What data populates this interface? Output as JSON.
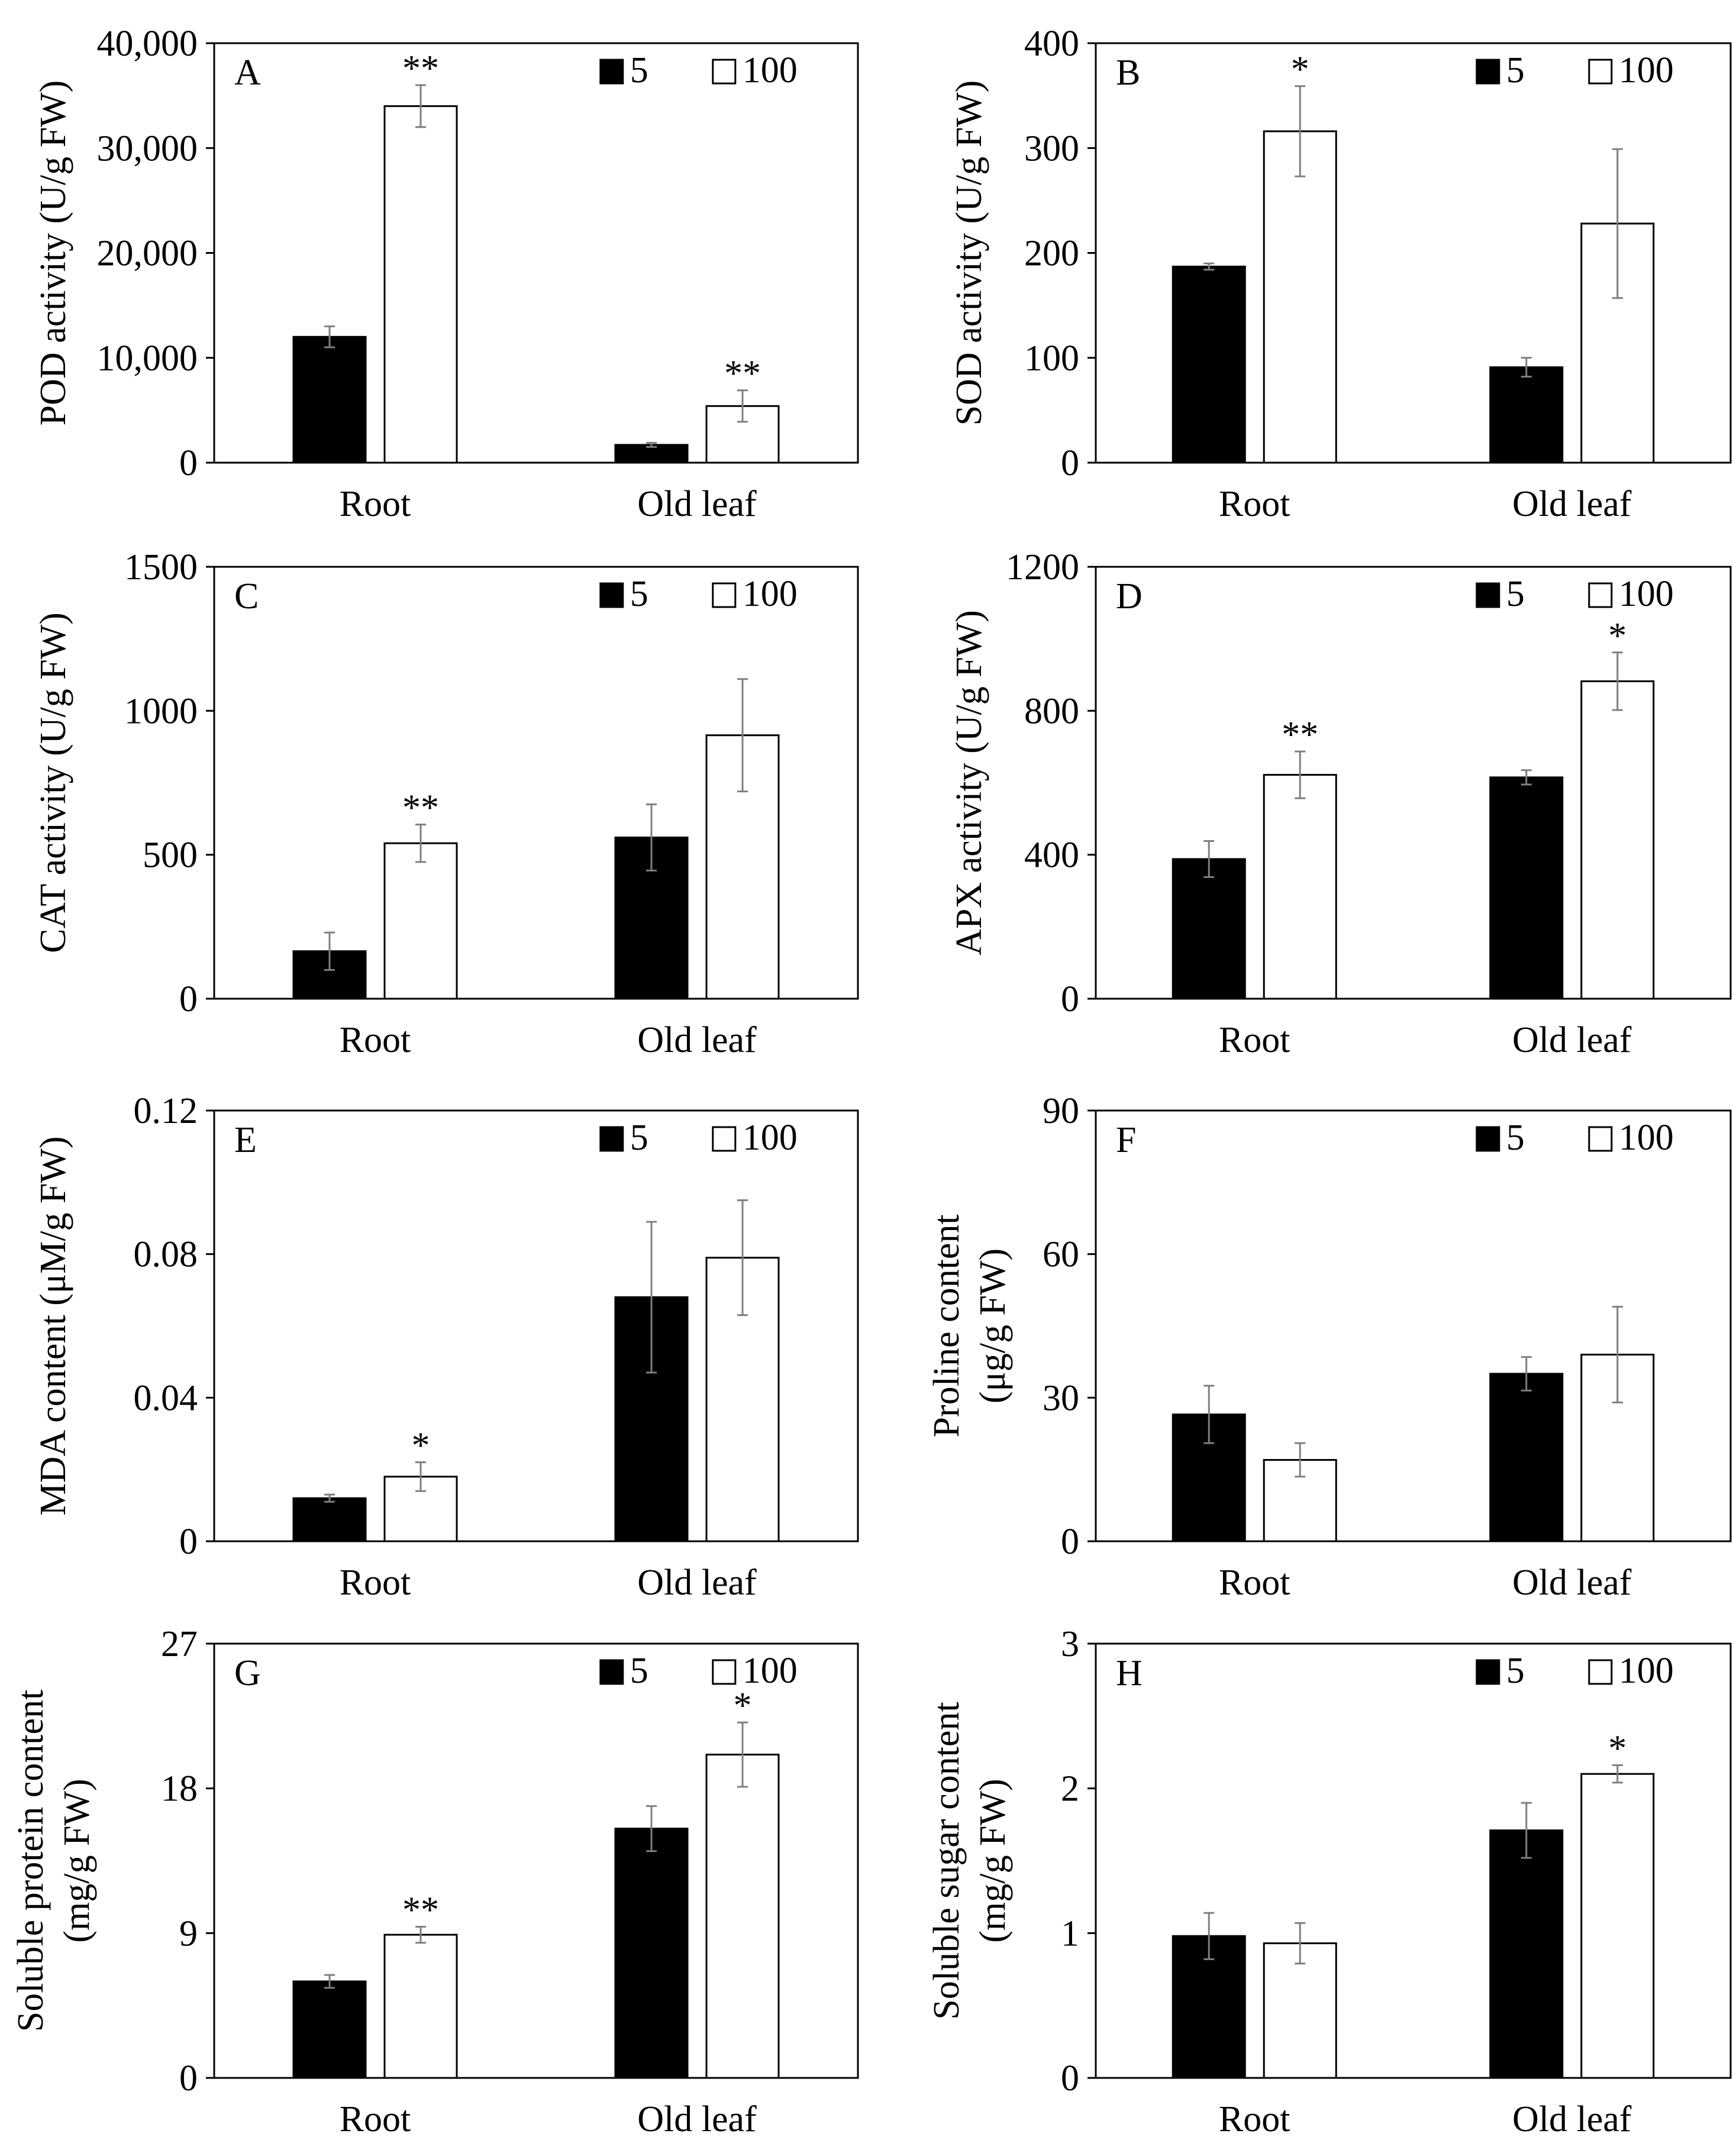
{
  "legend": {
    "labels": [
      "5",
      "100"
    ],
    "colors": [
      "#000000",
      "#ffffff"
    ]
  },
  "categories": [
    "Root",
    "Old leaf"
  ],
  "colors": {
    "bar_5": "#000000",
    "bar_100": "#ffffff",
    "error": "#7f7f7f",
    "axis": "#000000"
  },
  "chart_data": [
    {
      "type": "bar",
      "panel": "A",
      "ylabel": "POD activity (U/g FW)",
      "categories": [
        "Root",
        "Old leaf"
      ],
      "ylim": [
        0,
        40000
      ],
      "yticks": [
        0,
        10000,
        20000,
        30000,
        40000
      ],
      "ytick_labels": [
        "0",
        "10,000",
        "20,000",
        "30,000",
        "40,000"
      ],
      "series": [
        {
          "name": "5",
          "values": [
            12000,
            1700
          ],
          "errors": [
            1000,
            200
          ],
          "sig": [
            "",
            ""
          ]
        },
        {
          "name": "100",
          "values": [
            34000,
            5400
          ],
          "errors": [
            2000,
            1500
          ],
          "sig": [
            "**",
            "**"
          ]
        }
      ]
    },
    {
      "type": "bar",
      "panel": "B",
      "ylabel": "SOD activity (U/g FW)",
      "categories": [
        "Root",
        "Old leaf"
      ],
      "ylim": [
        0,
        400
      ],
      "yticks": [
        0,
        100,
        200,
        300,
        400
      ],
      "ytick_labels": [
        "0",
        "100",
        "200",
        "300",
        "400"
      ],
      "series": [
        {
          "name": "5",
          "values": [
            187,
            91
          ],
          "errors": [
            3,
            9
          ],
          "sig": [
            "",
            ""
          ]
        },
        {
          "name": "100",
          "values": [
            316,
            228
          ],
          "errors": [
            43,
            71
          ],
          "sig": [
            "*",
            ""
          ]
        }
      ]
    },
    {
      "type": "bar",
      "panel": "C",
      "ylabel": "CAT activity (U/g FW)",
      "categories": [
        "Root",
        "Old leaf"
      ],
      "ylim": [
        0,
        1500
      ],
      "yticks": [
        0,
        500,
        1000,
        1500
      ],
      "ytick_labels": [
        "0",
        "500",
        "1000",
        "1500"
      ],
      "series": [
        {
          "name": "5",
          "values": [
            165,
            560
          ],
          "errors": [
            65,
            115
          ],
          "sig": [
            "",
            ""
          ]
        },
        {
          "name": "100",
          "values": [
            540,
            915
          ],
          "errors": [
            65,
            195
          ],
          "sig": [
            "**",
            ""
          ]
        }
      ]
    },
    {
      "type": "bar",
      "panel": "D",
      "ylabel": "APX activity (U/g FW)",
      "categories": [
        "Root",
        "Old leaf"
      ],
      "ylim": [
        0,
        1200
      ],
      "yticks": [
        0,
        400,
        800,
        1200
      ],
      "ytick_labels": [
        "0",
        "400",
        "800",
        "1200"
      ],
      "series": [
        {
          "name": "5",
          "values": [
            388,
            615
          ],
          "errors": [
            50,
            20
          ],
          "sig": [
            "",
            ""
          ]
        },
        {
          "name": "100",
          "values": [
            622,
            882
          ],
          "errors": [
            65,
            80
          ],
          "sig": [
            "**",
            "*"
          ]
        }
      ]
    },
    {
      "type": "bar",
      "panel": "E",
      "ylabel": "MDA content (μM/g FW)",
      "categories": [
        "Root",
        "Old leaf"
      ],
      "ylim": [
        0,
        0.12
      ],
      "yticks": [
        0,
        0.04,
        0.08,
        0.12
      ],
      "ytick_labels": [
        "0",
        "0.04",
        "0.08",
        "0.12"
      ],
      "series": [
        {
          "name": "5",
          "values": [
            0.012,
            0.068
          ],
          "errors": [
            0.001,
            0.021
          ],
          "sig": [
            "",
            ""
          ]
        },
        {
          "name": "100",
          "values": [
            0.018,
            0.079
          ],
          "errors": [
            0.004,
            0.016
          ],
          "sig": [
            "*",
            ""
          ]
        }
      ]
    },
    {
      "type": "bar",
      "panel": "F",
      "ylabel": "Proline content",
      "ylabel2": "(μg/g FW)",
      "categories": [
        "Root",
        "Old leaf"
      ],
      "ylim": [
        0,
        90
      ],
      "yticks": [
        0,
        30,
        60,
        90
      ],
      "ytick_labels": [
        "0",
        "30",
        "60",
        "90"
      ],
      "series": [
        {
          "name": "5",
          "values": [
            26.5,
            35
          ],
          "errors": [
            6,
            3.5
          ],
          "sig": [
            "",
            ""
          ]
        },
        {
          "name": "100",
          "values": [
            17,
            39
          ],
          "errors": [
            3.5,
            10
          ],
          "sig": [
            "",
            ""
          ]
        }
      ]
    },
    {
      "type": "bar",
      "panel": "G",
      "ylabel": "Soluble protein content",
      "ylabel2": "(mg/g FW)",
      "categories": [
        "Root",
        "Old leaf"
      ],
      "ylim": [
        0,
        27
      ],
      "yticks": [
        0,
        9,
        18,
        27
      ],
      "ytick_labels": [
        "0",
        "9",
        "18",
        "27"
      ],
      "series": [
        {
          "name": "5",
          "values": [
            6,
            15.5
          ],
          "errors": [
            0.4,
            1.4
          ],
          "sig": [
            "",
            ""
          ]
        },
        {
          "name": "100",
          "values": [
            8.9,
            20.1
          ],
          "errors": [
            0.5,
            2
          ],
          "sig": [
            "**",
            "*"
          ]
        }
      ]
    },
    {
      "type": "bar",
      "panel": "H",
      "ylabel": "Soluble sugar content",
      "ylabel2": "(mg/g FW)",
      "categories": [
        "Root",
        "Old leaf"
      ],
      "ylim": [
        0,
        3
      ],
      "yticks": [
        0,
        1,
        2,
        3
      ],
      "ytick_labels": [
        "0",
        "1",
        "2",
        "3"
      ],
      "series": [
        {
          "name": "5",
          "values": [
            0.98,
            1.71
          ],
          "errors": [
            0.16,
            0.19
          ],
          "sig": [
            "",
            ""
          ]
        },
        {
          "name": "100",
          "values": [
            0.93,
            2.1
          ],
          "errors": [
            0.14,
            0.06
          ],
          "sig": [
            "",
            "*"
          ]
        }
      ]
    }
  ]
}
